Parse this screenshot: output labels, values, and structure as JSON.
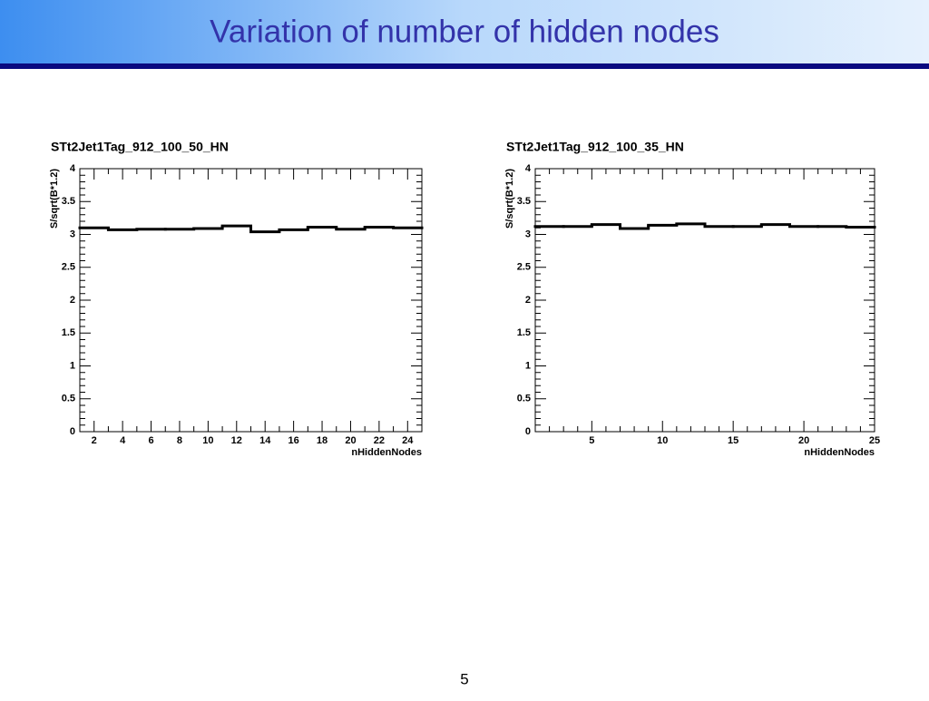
{
  "slide_title": "Variation of number of hidden nodes",
  "page_number": "5",
  "chart_data": [
    {
      "type": "histogram",
      "title": "STt2Jet1Tag_912_100_50_HN",
      "x_label": "nHiddenNodes",
      "y_label": "S/sqrt(B*1.2)",
      "bins": [
        1,
        3,
        5,
        7,
        9,
        11,
        13,
        15,
        17,
        19,
        21,
        23,
        25
      ],
      "values": [
        3.1,
        3.07,
        3.08,
        3.08,
        3.09,
        3.13,
        3.04,
        3.07,
        3.11,
        3.08,
        3.11,
        3.1
      ],
      "color": "#000000",
      "xlim": [
        1,
        25
      ],
      "xticks": [
        2,
        4,
        6,
        8,
        10,
        12,
        14,
        16,
        18,
        20,
        22,
        24
      ],
      "ylim": [
        0,
        4
      ],
      "yticks": [
        0,
        0.5,
        1,
        1.5,
        2,
        2.5,
        3,
        3.5,
        4
      ]
    },
    {
      "type": "histogram",
      "title": "STt2Jet1Tag_912_100_35_HN",
      "x_label": "nHiddenNodes",
      "y_label": "S/sqrt(B*1.2)",
      "bins": [
        1,
        3,
        5,
        7,
        9,
        11,
        13,
        15,
        17,
        19,
        21,
        23,
        25
      ],
      "values": [
        3.12,
        3.12,
        3.15,
        3.09,
        3.14,
        3.16,
        3.12,
        3.12,
        3.15,
        3.12,
        3.12,
        3.11
      ],
      "color": "#000000",
      "xlim": [
        1,
        25
      ],
      "xticks": [
        5,
        10,
        15,
        20,
        25
      ],
      "ylim": [
        0,
        4
      ],
      "yticks": [
        0,
        0.5,
        1,
        1.5,
        2,
        2.5,
        3,
        3.5,
        4
      ]
    }
  ]
}
